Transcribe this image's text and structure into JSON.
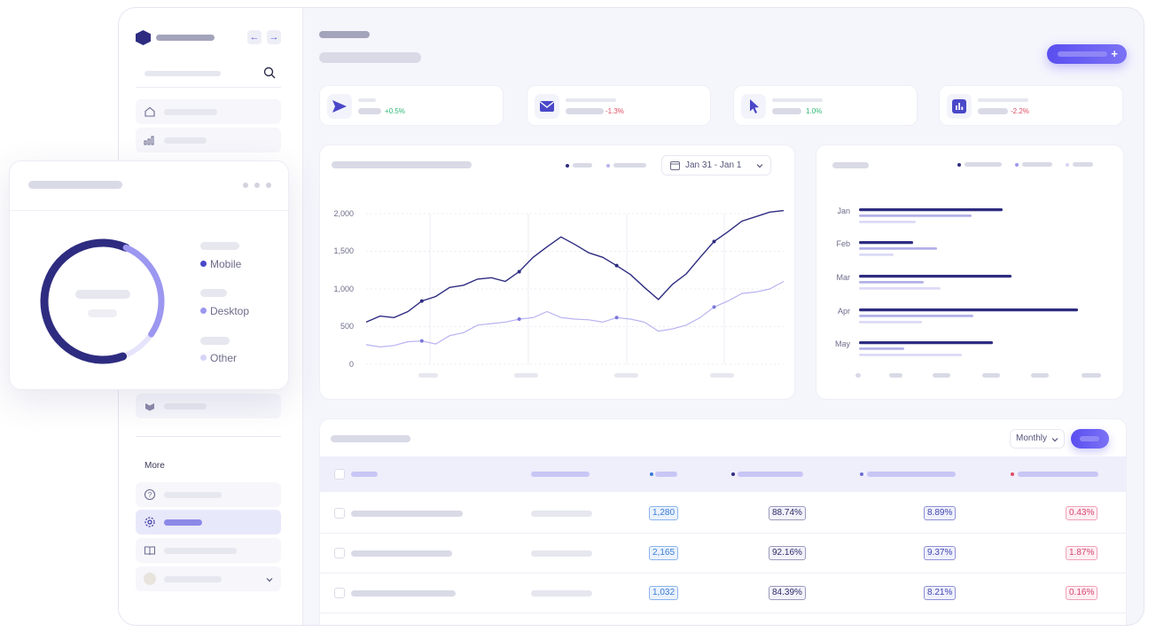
{
  "sidebar": {
    "more_label": "More"
  },
  "stats": [
    {
      "icon": "send-icon",
      "delta": "+0.5%",
      "trend": "up"
    },
    {
      "icon": "mail-icon",
      "delta": "-1.3%",
      "trend": "down"
    },
    {
      "icon": "cursor-icon",
      "delta": "1.0%",
      "trend": "up"
    },
    {
      "icon": "bar-chart-icon",
      "delta": "-2.2%",
      "trend": "down"
    }
  ],
  "line_chart": {
    "date_range": "Jan 31 - Jan 1",
    "y_ticks": [
      "2,000",
      "1,500",
      "1,000",
      "500",
      "0"
    ]
  },
  "chart_data": [
    {
      "type": "line",
      "title": "",
      "ylim": [
        0,
        2000
      ],
      "y_ticks": [
        0,
        500,
        1000,
        1500,
        2000
      ],
      "x": [
        0,
        1,
        2,
        3,
        4,
        5,
        6,
        7,
        8,
        9,
        10,
        11,
        12,
        13,
        14,
        15,
        16,
        17,
        18,
        19,
        20,
        21,
        22,
        23,
        24,
        25,
        26,
        27,
        28,
        29,
        30
      ],
      "series": [
        {
          "color": "#2e2c80",
          "values": [
            560,
            640,
            620,
            700,
            840,
            900,
            1020,
            1050,
            1130,
            1150,
            1100,
            1230,
            1420,
            1560,
            1690,
            1590,
            1480,
            1420,
            1310,
            1190,
            1020,
            860,
            1060,
            1200,
            1420,
            1630,
            1760,
            1900,
            1960,
            2020,
            2040
          ]
        },
        {
          "color": "#b8b3f0",
          "values": [
            260,
            230,
            250,
            300,
            310,
            270,
            380,
            420,
            520,
            540,
            560,
            600,
            620,
            700,
            620,
            600,
            590,
            560,
            620,
            600,
            560,
            440,
            470,
            520,
            620,
            760,
            840,
            940,
            960,
            1000,
            1100
          ]
        }
      ]
    },
    {
      "type": "bar",
      "title": "",
      "orientation": "horizontal",
      "categories": [
        "Jan",
        "Feb",
        "Mar",
        "Apr",
        "May"
      ],
      "series": [
        {
          "color": "#2e2c80",
          "values": [
            162,
            61,
            172,
            247,
            151
          ]
        },
        {
          "color": "#b3b1e8",
          "values": [
            127,
            88,
            73,
            129,
            51
          ]
        },
        {
          "color": "#dcdaf6",
          "values": [
            64,
            39,
            92,
            71,
            116
          ]
        }
      ]
    },
    {
      "type": "pie",
      "title": "",
      "categories": [
        "Mobile",
        "Desktop",
        "Other"
      ],
      "values": [
        62,
        28,
        10
      ],
      "colors": [
        "#2e2c80",
        "#9c97f0",
        "#e6e4fb"
      ]
    }
  ],
  "table": {
    "filter_label": "Monthly",
    "rows": [
      {
        "count": "1,280",
        "pct1": "88.74%",
        "pct2": "8.89%",
        "pct3": "0.43%"
      },
      {
        "count": "2,165",
        "pct1": "92.16%",
        "pct2": "9.37%",
        "pct3": "1.87%"
      },
      {
        "count": "1,032",
        "pct1": "84.39%",
        "pct2": "8.21%",
        "pct3": "0.16%"
      }
    ]
  },
  "donut": {
    "legend": [
      "Mobile",
      "Desktop",
      "Other"
    ]
  },
  "colors": {
    "accent": "#5a4ef0",
    "navy": "#2e2c80",
    "lavender": "#9c97f0"
  }
}
